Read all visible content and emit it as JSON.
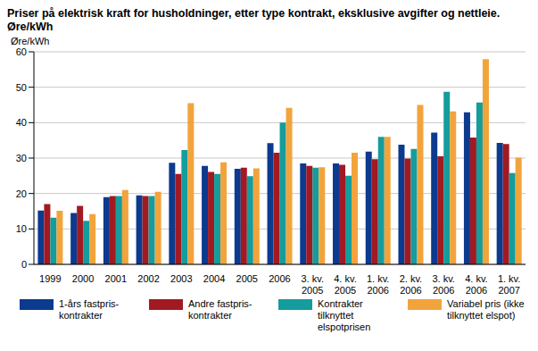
{
  "chart_data": {
    "type": "bar",
    "title": "Priser på elektrisk kraft for husholdninger, etter type kontrakt, eksklusive avgifter og nettleie. Øre/kWh",
    "y_label": "Øre/kWh",
    "categories": [
      "1999",
      "2000",
      "2001",
      "2002",
      "2003",
      "2004",
      "2005",
      "2006",
      "3. kv. 2005",
      "4. kv. 2005",
      "1. kv. 2006",
      "2. kv. 2006",
      "3. kv. 2006",
      "4. kv. 2006",
      "1. kv. 2007"
    ],
    "series": [
      {
        "name": "1-års fastpris-kontrakter",
        "color": "#0b3a8e",
        "values": [
          15.2,
          14.5,
          19.0,
          19.5,
          28.7,
          27.8,
          27.0,
          34.2,
          28.5,
          28.5,
          31.8,
          33.8,
          37.2,
          42.9,
          34.3
        ]
      },
      {
        "name": "Andre fastpris-kontrakter",
        "color": "#a11a22",
        "values": [
          17.0,
          16.5,
          19.3,
          19.3,
          25.5,
          26.1,
          27.3,
          31.5,
          27.8,
          28.1,
          29.7,
          29.9,
          30.5,
          35.8,
          34.0
        ]
      },
      {
        "name": "Kontrakter tilknyttet elspotprisen",
        "color": "#159c9c",
        "values": [
          13.2,
          12.3,
          19.3,
          19.3,
          32.3,
          25.5,
          24.9,
          40.0,
          27.3,
          25.0,
          36.0,
          32.6,
          48.7,
          45.7,
          25.8
        ]
      },
      {
        "name": "Variabel pris (ikke tilknyttet elspot)",
        "color": "#f2a43c",
        "values": [
          15.1,
          14.2,
          21.0,
          20.5,
          45.5,
          28.8,
          27.1,
          44.2,
          27.4,
          31.5,
          36.0,
          45.0,
          43.2,
          57.9,
          30.1
        ]
      }
    ],
    "ylim": [
      0,
      60
    ],
    "yticks": [
      0,
      10,
      20,
      30,
      40,
      50,
      60
    ],
    "grid": true,
    "legend": "bottom"
  }
}
